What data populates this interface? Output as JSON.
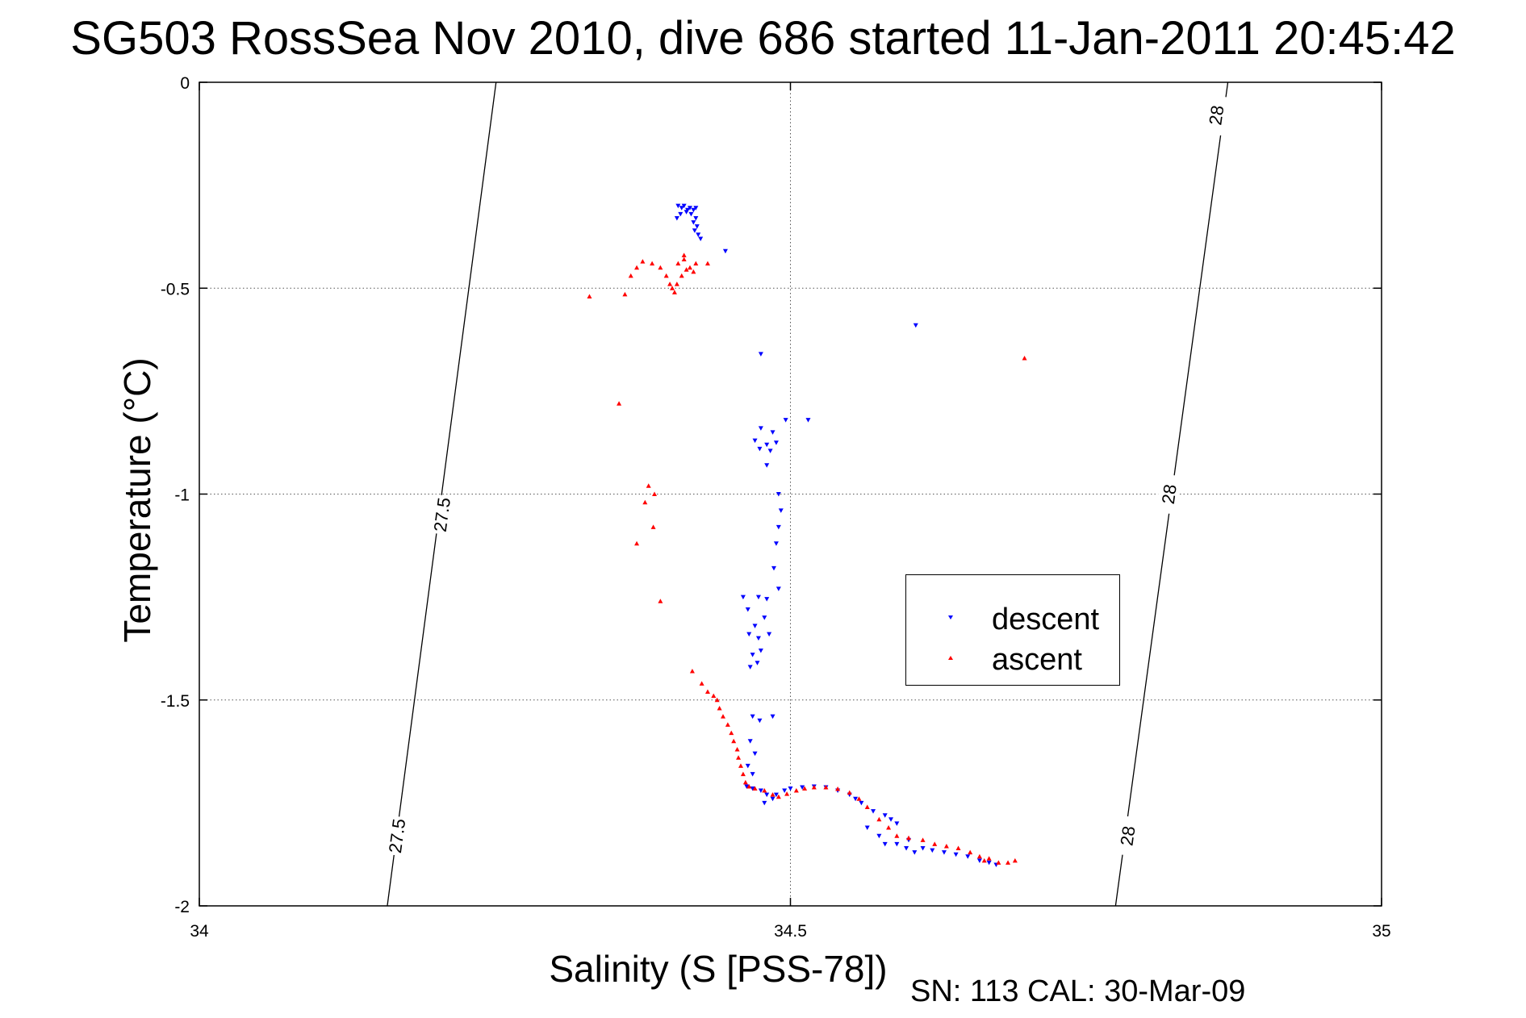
{
  "chart_data": {
    "type": "scatter",
    "title": "SG503 RossSea Nov 2010, dive 686 started 11-Jan-2011 20:45:42",
    "xlabel": "Salinity (S [PSS-78])",
    "ylabel": "Temperature (°C)",
    "xlim": [
      34,
      35
    ],
    "ylim": [
      -2,
      0
    ],
    "xticks": [
      "34",
      "34.5",
      "35"
    ],
    "yticks": [
      "0",
      "-0.5",
      "-1",
      "-1.5",
      "-2"
    ],
    "grid": true,
    "legend_position": "center-right",
    "footer": "SN: 113  CAL: 30-Mar-09",
    "density_contours": [
      {
        "label": "27.5",
        "points": [
          [
            34.159,
            -2
          ],
          [
            34.251,
            0
          ]
        ],
        "labels_at": [
          [
            34.205,
            -1.05
          ],
          [
            34.167,
            -1.83
          ]
        ]
      },
      {
        "label": "28",
        "points": [
          [
            34.775,
            -2
          ],
          [
            34.87,
            0
          ]
        ],
        "labels_at": [
          [
            34.86,
            -0.08
          ],
          [
            34.82,
            -1.0
          ],
          [
            34.785,
            -1.83
          ]
        ]
      }
    ],
    "series": [
      {
        "name": "descent",
        "marker": "triangle-down",
        "color": "#0000ff",
        "points": [
          [
            34.405,
            -0.3
          ],
          [
            34.408,
            -0.305
          ],
          [
            34.41,
            -0.3
          ],
          [
            34.413,
            -0.31
          ],
          [
            34.415,
            -0.305
          ],
          [
            34.418,
            -0.31
          ],
          [
            34.42,
            -0.305
          ],
          [
            34.416,
            -0.32
          ],
          [
            34.412,
            -0.315
          ],
          [
            34.407,
            -0.32
          ],
          [
            34.404,
            -0.33
          ],
          [
            34.42,
            -0.33
          ],
          [
            34.418,
            -0.34
          ],
          [
            34.421,
            -0.35
          ],
          [
            34.422,
            -0.37
          ],
          [
            34.424,
            -0.38
          ],
          [
            34.419,
            -0.36
          ],
          [
            34.445,
            -0.41
          ],
          [
            34.606,
            -0.59
          ],
          [
            34.475,
            -0.66
          ],
          [
            34.496,
            -0.82
          ],
          [
            34.515,
            -0.82
          ],
          [
            34.475,
            -0.84
          ],
          [
            34.485,
            -0.85
          ],
          [
            34.47,
            -0.87
          ],
          [
            34.48,
            -0.88
          ],
          [
            34.488,
            -0.875
          ],
          [
            34.474,
            -0.89
          ],
          [
            34.483,
            -0.895
          ],
          [
            34.48,
            -0.93
          ],
          [
            34.49,
            -1.0
          ],
          [
            34.492,
            -1.04
          ],
          [
            34.49,
            -1.08
          ],
          [
            34.488,
            -1.12
          ],
          [
            34.486,
            -1.18
          ],
          [
            34.49,
            -1.23
          ],
          [
            34.46,
            -1.25
          ],
          [
            34.473,
            -1.25
          ],
          [
            34.48,
            -1.255
          ],
          [
            34.464,
            -1.28
          ],
          [
            34.478,
            -1.3
          ],
          [
            34.47,
            -1.32
          ],
          [
            34.465,
            -1.34
          ],
          [
            34.473,
            -1.35
          ],
          [
            34.482,
            -1.34
          ],
          [
            34.475,
            -1.38
          ],
          [
            34.468,
            -1.39
          ],
          [
            34.472,
            -1.41
          ],
          [
            34.466,
            -1.42
          ],
          [
            34.468,
            -1.54
          ],
          [
            34.485,
            -1.54
          ],
          [
            34.474,
            -1.55
          ],
          [
            34.466,
            -1.6
          ],
          [
            34.47,
            -1.63
          ],
          [
            34.464,
            -1.66
          ],
          [
            34.468,
            -1.68
          ],
          [
            34.463,
            -1.71
          ],
          [
            34.468,
            -1.715
          ],
          [
            34.475,
            -1.72
          ],
          [
            34.48,
            -1.73
          ],
          [
            34.485,
            -1.74
          ],
          [
            34.478,
            -1.75
          ],
          [
            34.488,
            -1.73
          ],
          [
            34.495,
            -1.72
          ],
          [
            34.5,
            -1.715
          ],
          [
            34.51,
            -1.712
          ],
          [
            34.52,
            -1.71
          ],
          [
            34.53,
            -1.712
          ],
          [
            34.54,
            -1.72
          ],
          [
            34.55,
            -1.73
          ],
          [
            34.555,
            -1.74
          ],
          [
            34.56,
            -1.75
          ],
          [
            34.57,
            -1.77
          ],
          [
            34.58,
            -1.78
          ],
          [
            34.585,
            -1.79
          ],
          [
            34.59,
            -1.8
          ],
          [
            34.565,
            -1.81
          ],
          [
            34.575,
            -1.83
          ],
          [
            34.58,
            -1.85
          ],
          [
            34.59,
            -1.85
          ],
          [
            34.598,
            -1.86
          ],
          [
            34.605,
            -1.87
          ],
          [
            34.6,
            -1.84
          ],
          [
            34.612,
            -1.86
          ],
          [
            34.62,
            -1.865
          ],
          [
            34.63,
            -1.87
          ],
          [
            34.64,
            -1.875
          ],
          [
            34.65,
            -1.88
          ],
          [
            34.66,
            -1.89
          ],
          [
            34.668,
            -1.895
          ],
          [
            34.674,
            -1.9
          ]
        ]
      },
      {
        "name": "ascent",
        "marker": "triangle-up",
        "color": "#ff0000",
        "points": [
          [
            34.33,
            -0.52
          ],
          [
            34.36,
            -0.515
          ],
          [
            34.365,
            -0.47
          ],
          [
            34.37,
            -0.45
          ],
          [
            34.375,
            -0.435
          ],
          [
            34.383,
            -0.44
          ],
          [
            34.39,
            -0.45
          ],
          [
            34.395,
            -0.47
          ],
          [
            34.398,
            -0.49
          ],
          [
            34.4,
            -0.5
          ],
          [
            34.402,
            -0.51
          ],
          [
            34.405,
            -0.44
          ],
          [
            34.41,
            -0.43
          ],
          [
            34.412,
            -0.455
          ],
          [
            34.415,
            -0.45
          ],
          [
            34.42,
            -0.44
          ],
          [
            34.41,
            -0.42
          ],
          [
            34.418,
            -0.46
          ],
          [
            34.408,
            -0.47
          ],
          [
            34.404,
            -0.49
          ],
          [
            34.43,
            -0.44
          ],
          [
            34.698,
            -0.67
          ],
          [
            34.355,
            -0.78
          ],
          [
            34.38,
            -0.98
          ],
          [
            34.385,
            -1.0
          ],
          [
            34.377,
            -1.02
          ],
          [
            34.384,
            -1.08
          ],
          [
            34.37,
            -1.12
          ],
          [
            34.39,
            -1.26
          ],
          [
            34.417,
            -1.43
          ],
          [
            34.425,
            -1.46
          ],
          [
            34.43,
            -1.48
          ],
          [
            34.435,
            -1.49
          ],
          [
            34.438,
            -1.5
          ],
          [
            34.44,
            -1.52
          ],
          [
            34.443,
            -1.54
          ],
          [
            34.447,
            -1.56
          ],
          [
            34.45,
            -1.58
          ],
          [
            34.452,
            -1.6
          ],
          [
            34.455,
            -1.62
          ],
          [
            34.456,
            -1.64
          ],
          [
            34.458,
            -1.66
          ],
          [
            34.46,
            -1.68
          ],
          [
            34.462,
            -1.7
          ],
          [
            34.465,
            -1.71
          ],
          [
            34.47,
            -1.715
          ],
          [
            34.478,
            -1.72
          ],
          [
            34.485,
            -1.73
          ],
          [
            34.49,
            -1.735
          ],
          [
            34.497,
            -1.728
          ],
          [
            34.505,
            -1.72
          ],
          [
            34.512,
            -1.715
          ],
          [
            34.52,
            -1.712
          ],
          [
            34.53,
            -1.712
          ],
          [
            34.54,
            -1.716
          ],
          [
            34.55,
            -1.725
          ],
          [
            34.558,
            -1.74
          ],
          [
            34.565,
            -1.76
          ],
          [
            34.575,
            -1.79
          ],
          [
            34.583,
            -1.81
          ],
          [
            34.59,
            -1.83
          ],
          [
            34.6,
            -1.835
          ],
          [
            34.612,
            -1.84
          ],
          [
            34.622,
            -1.85
          ],
          [
            34.632,
            -1.855
          ],
          [
            34.642,
            -1.86
          ],
          [
            34.652,
            -1.87
          ],
          [
            34.66,
            -1.88
          ],
          [
            34.668,
            -1.885
          ],
          [
            34.676,
            -1.895
          ],
          [
            34.684,
            -1.895
          ],
          [
            34.664,
            -1.89
          ],
          [
            34.69,
            -1.89
          ]
        ]
      }
    ]
  }
}
